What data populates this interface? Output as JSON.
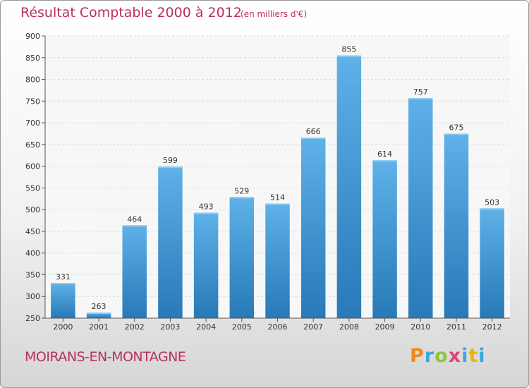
{
  "chart_data": {
    "type": "bar",
    "title": "Résultat Comptable 2000 à 2012",
    "subtitle": "(en milliers d'€)",
    "categories": [
      "2000",
      "2001",
      "2002",
      "2003",
      "2004",
      "2005",
      "2006",
      "2007",
      "2008",
      "2009",
      "2010",
      "2011",
      "2012"
    ],
    "values": [
      331,
      263,
      464,
      599,
      493,
      529,
      514,
      666,
      855,
      614,
      757,
      675,
      503
    ],
    "ylim": [
      250,
      900
    ],
    "yticks": [
      250,
      300,
      350,
      400,
      450,
      500,
      550,
      600,
      650,
      700,
      750,
      800,
      850,
      900
    ],
    "xlabel": "",
    "ylabel": "",
    "grid": true,
    "bar_color_top": "#5fb1e8",
    "bar_color_bottom": "#2779b8"
  },
  "footer": {
    "city": "MOIRANS-EN-MONTAGNE",
    "brand_letters": [
      "P",
      "r",
      "o",
      "x",
      "i",
      "t",
      "i"
    ],
    "brand_colors": [
      "#f08a1c",
      "#3aa8df",
      "#8cc63f",
      "#e0427a",
      "#3aa8df",
      "#f0b400",
      "#3aa8df"
    ]
  },
  "colors": {
    "accent": "#b8325a"
  }
}
